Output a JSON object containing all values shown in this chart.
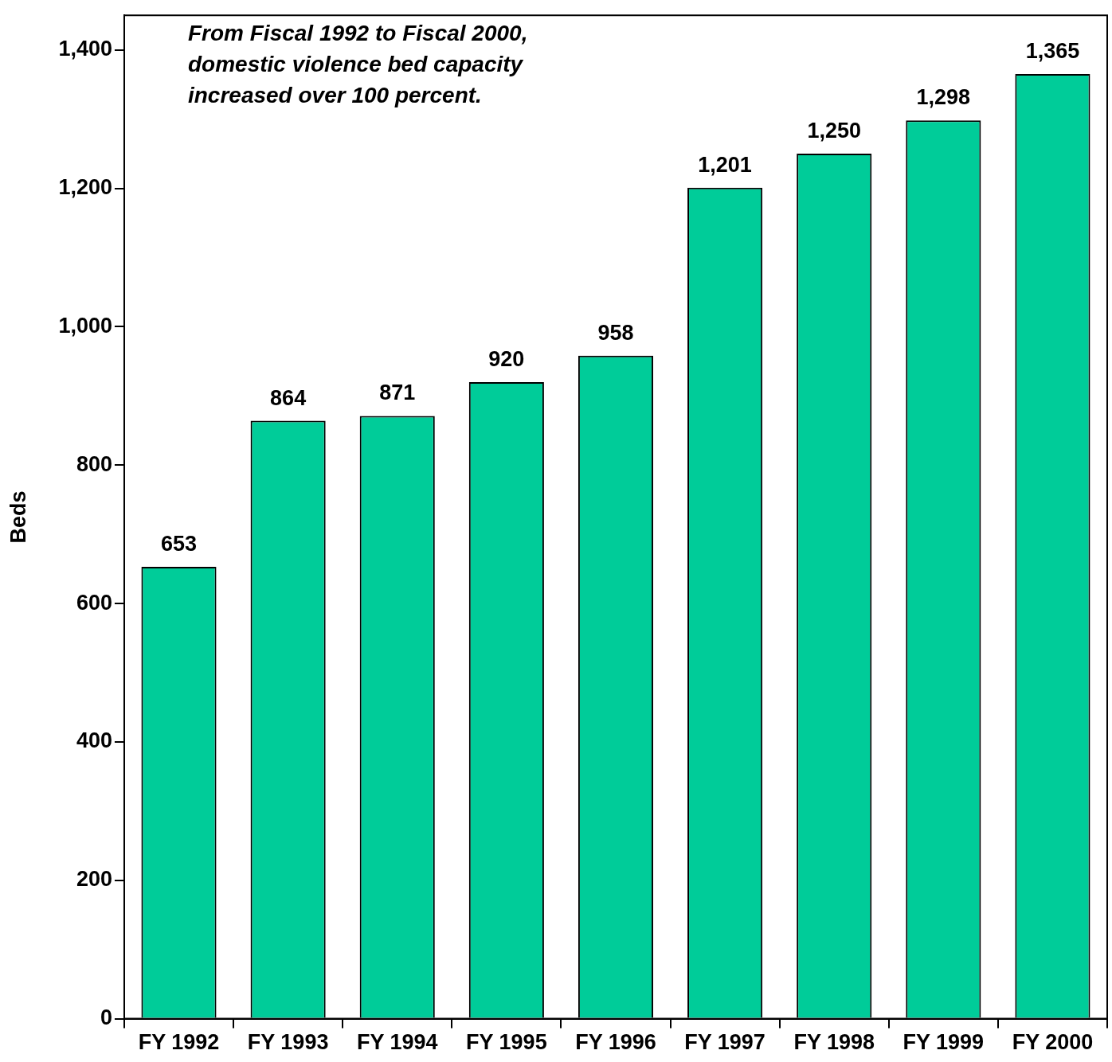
{
  "chart_data": {
    "type": "bar",
    "ylabel": "Beds",
    "annotations": [
      "From Fiscal 1992 to Fiscal 2000, domestic violence bed capacity increased over 100 percent."
    ],
    "categories": [
      "FY 1992",
      "FY 1993",
      "FY 1994",
      "FY 1995",
      "FY 1996",
      "FY 1997",
      "FY 1998",
      "FY 1999",
      "FY 2000"
    ],
    "values": [
      653,
      864,
      871,
      920,
      958,
      1201,
      1250,
      1298,
      1365
    ],
    "value_labels": [
      "653",
      "864",
      "871",
      "920",
      "958",
      "1,201",
      "1,250",
      "1,298",
      "1,365"
    ],
    "color": "#00cc99",
    "ylim": [
      0,
      1450
    ],
    "yticks": [
      0,
      {
        "value": 200,
        "label": "200"
      },
      {
        "value": 400,
        "label": "400"
      },
      {
        "value": 600,
        "label": "600"
      },
      {
        "value": 800,
        "label": "800"
      },
      {
        "value": 1000,
        "label": "1,000"
      },
      {
        "value": 1200,
        "label": "1,200"
      },
      {
        "value": 1400,
        "label": "1,400"
      }
    ],
    "legend": false
  }
}
